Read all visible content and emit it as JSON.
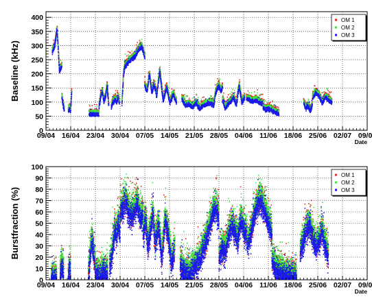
{
  "chart_data": [
    {
      "type": "scatter",
      "ylabel": "Baseline (kHz)",
      "xlabel": "Date",
      "x_tick_labels": [
        "09/04",
        "16/04",
        "23/04",
        "30/04",
        "07/05",
        "14/05",
        "21/05",
        "28/05",
        "04/06",
        "11/06",
        "18/06",
        "25/06",
        "02/07",
        "09/07"
      ],
      "y_ticks": [
        0,
        50,
        100,
        150,
        200,
        250,
        300,
        350,
        400
      ],
      "ylim": [
        0,
        420
      ],
      "xlim_days": [
        0,
        91
      ],
      "grid": "dotted",
      "legend_position": "top-right",
      "legend": [
        "OM 1",
        "OM 2",
        "OM 3"
      ],
      "colors": {
        "OM 1": "#e8251d",
        "OM 2": "#3fe03f",
        "OM 3": "#1a1aea"
      },
      "segments": [
        {
          "start": 1.8,
          "end": 4.5,
          "level": [
            280,
            300,
            360,
            210,
            230
          ]
        },
        {
          "start": 4.5,
          "end": 5.2,
          "level": [
            120,
            100,
            85,
            75
          ]
        },
        {
          "start": 6.3,
          "end": 7.3,
          "level": [
            65,
            80,
            70,
            140
          ]
        },
        {
          "start": 12.2,
          "end": 15.0,
          "level": [
            60,
            60,
            60,
            60,
            58
          ]
        },
        {
          "start": 15.0,
          "end": 17.8,
          "level": [
            80,
            120,
            140,
            105,
            120,
            160,
            85
          ]
        },
        {
          "start": 18.5,
          "end": 20.8,
          "level": [
            85,
            100,
            105,
            115,
            100,
            120,
            100
          ]
        },
        {
          "start": 21.5,
          "end": 22.5,
          "level": [
            90,
            200,
            240
          ]
        },
        {
          "start": 22.5,
          "end": 28.0,
          "level": [
            230,
            245,
            255,
            265,
            285,
            300,
            260
          ]
        },
        {
          "start": 28.0,
          "end": 31.3,
          "level": [
            160,
            140,
            200,
            135,
            165,
            130
          ]
        },
        {
          "start": 31.3,
          "end": 37.0,
          "level": [
            120,
            210,
            105,
            155,
            100,
            130,
            100
          ]
        },
        {
          "start": 38.5,
          "end": 47.5,
          "level": [
            115,
            90,
            95,
            85,
            100,
            80,
            90,
            95,
            100,
            90
          ]
        },
        {
          "start": 47.5,
          "end": 50.0,
          "level": [
            90,
            130,
            150,
            160,
            140,
            155
          ]
        },
        {
          "start": 50.0,
          "end": 56.3,
          "level": [
            110,
            80,
            95,
            105,
            120,
            90,
            160,
            100,
            120
          ]
        },
        {
          "start": 56.8,
          "end": 61.5,
          "level": [
            115,
            110,
            105,
            110,
            100,
            95
          ]
        },
        {
          "start": 61.5,
          "end": 66.0,
          "level": [
            85,
            75,
            80,
            75,
            70,
            65,
            60
          ]
        },
        {
          "start": 73.0,
          "end": 75.5,
          "level": [
            100,
            80,
            90,
            70,
            95
          ]
        },
        {
          "start": 75.5,
          "end": 81.0,
          "level": [
            115,
            135,
            125,
            100,
            120,
            110,
            100
          ]
        }
      ]
    },
    {
      "type": "scatter",
      "ylabel": "Burstfraction (%)",
      "xlabel": "Date",
      "x_tick_labels": [
        "09/04",
        "16/04",
        "23/04",
        "30/04",
        "07/05",
        "14/05",
        "21/05",
        "28/05",
        "04/06",
        "11/06",
        "18/06",
        "25/06",
        "02/07",
        "09/07"
      ],
      "y_ticks": [
        0,
        10,
        20,
        30,
        40,
        50,
        60,
        70,
        80,
        90,
        100
      ],
      "ylim": [
        0,
        100
      ],
      "xlim_days": [
        0,
        91
      ],
      "grid": "dotted",
      "legend_position": "top-right",
      "legend": [
        "OM 1",
        "OM 2",
        "OM 3"
      ],
      "colors": {
        "OM 1": "#e8251d",
        "OM 2": "#3fe03f",
        "OM 3": "#1a1aea"
      },
      "segments": [
        {
          "start": 1.5,
          "end": 3.0,
          "level": [
            3,
            2,
            4,
            2
          ]
        },
        {
          "start": 4.0,
          "end": 5.0,
          "level": [
            6,
            14,
            10
          ]
        },
        {
          "start": 6.3,
          "end": 7.0,
          "level": [
            6,
            9,
            7
          ]
        },
        {
          "start": 12.0,
          "end": 14.0,
          "level": [
            5,
            20,
            38,
            25,
            12
          ]
        },
        {
          "start": 14.0,
          "end": 17.5,
          "level": [
            8,
            5,
            4,
            6,
            10,
            5,
            8
          ]
        },
        {
          "start": 18.0,
          "end": 21.0,
          "level": [
            12,
            20,
            30,
            45,
            40,
            52,
            42
          ]
        },
        {
          "start": 21.0,
          "end": 27.5,
          "level": [
            60,
            65,
            72,
            60,
            58,
            62,
            70,
            55,
            60
          ]
        },
        {
          "start": 27.5,
          "end": 31.0,
          "level": [
            40,
            55,
            30,
            45,
            60,
            28
          ]
        },
        {
          "start": 31.0,
          "end": 36.5,
          "level": [
            35,
            50,
            20,
            55,
            40,
            15,
            30
          ]
        },
        {
          "start": 38.0,
          "end": 44.0,
          "level": [
            15,
            10,
            8,
            6,
            10,
            14,
            18,
            22
          ]
        },
        {
          "start": 44.0,
          "end": 49.0,
          "level": [
            25,
            30,
            40,
            50,
            60,
            65,
            55
          ]
        },
        {
          "start": 49.0,
          "end": 57.0,
          "level": [
            20,
            30,
            25,
            40,
            50,
            45,
            35,
            55,
            45,
            40
          ]
        },
        {
          "start": 57.0,
          "end": 64.0,
          "level": [
            30,
            40,
            55,
            65,
            72,
            68,
            60,
            50,
            40
          ]
        },
        {
          "start": 64.0,
          "end": 71.0,
          "level": [
            20,
            10,
            8,
            6,
            5,
            4,
            3
          ]
        },
        {
          "start": 72.0,
          "end": 80.0,
          "level": [
            25,
            35,
            45,
            50,
            40,
            30,
            35,
            45,
            30,
            22
          ]
        }
      ]
    }
  ]
}
